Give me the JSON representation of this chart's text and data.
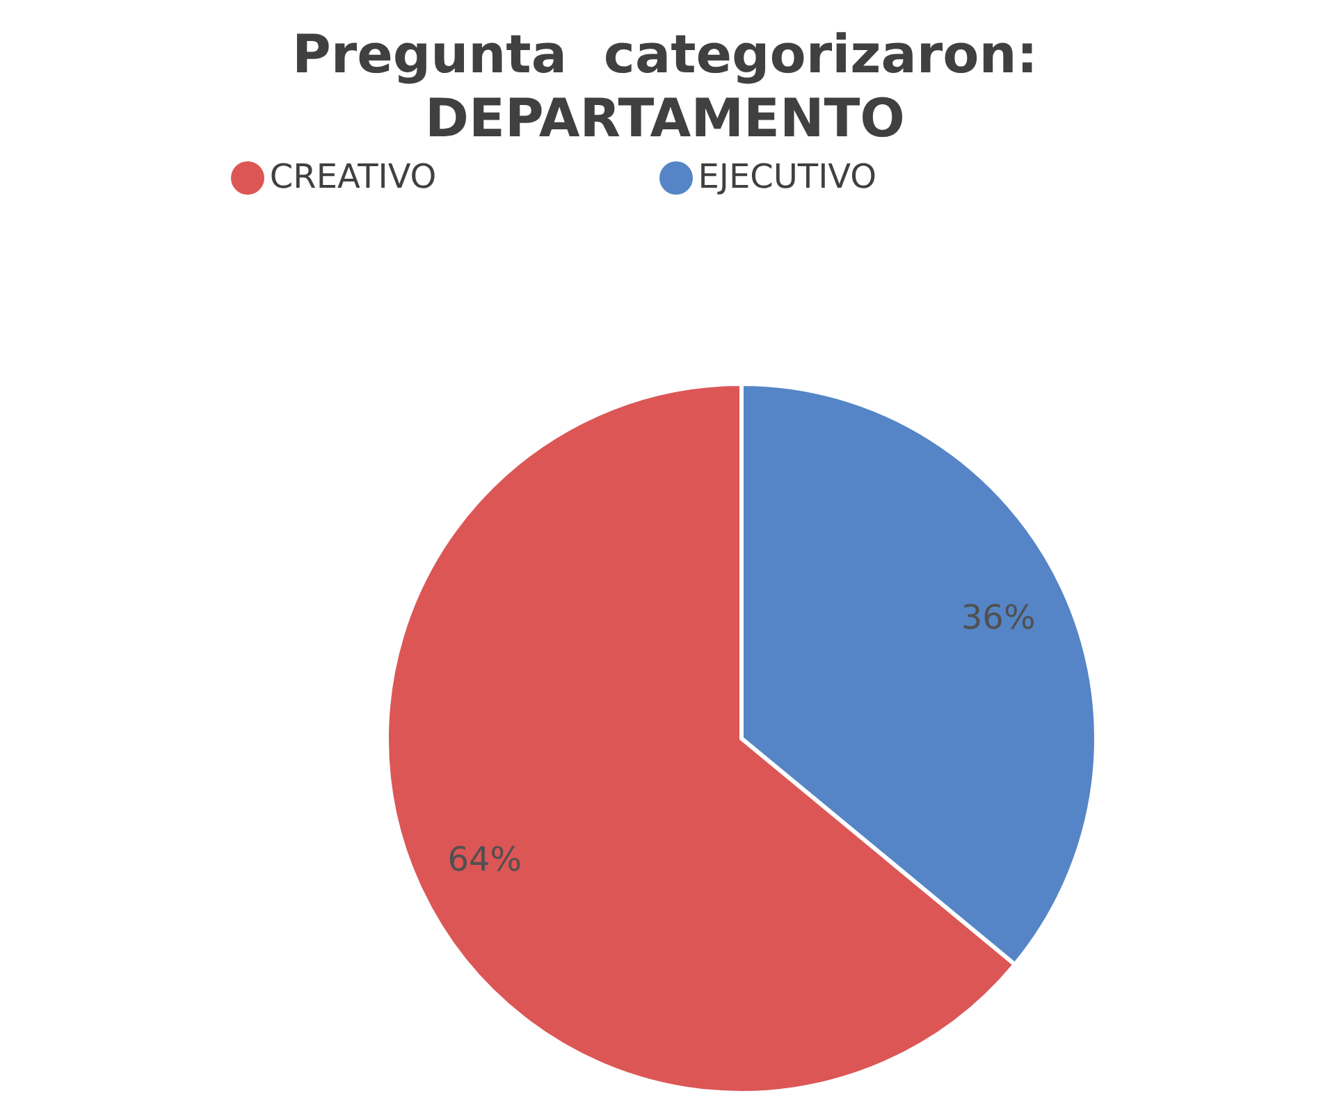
{
  "chart_data": {
    "type": "pie",
    "title": "Pregunta  categorizaron:\nDEPARTAMENTO",
    "categories": [
      "EJECUTIVO",
      "CREATIVO"
    ],
    "values": [
      36,
      64
    ],
    "colors": [
      "#5585c6",
      "#dc5656"
    ],
    "value_labels": [
      "36%",
      "64%"
    ],
    "legend": "top"
  }
}
